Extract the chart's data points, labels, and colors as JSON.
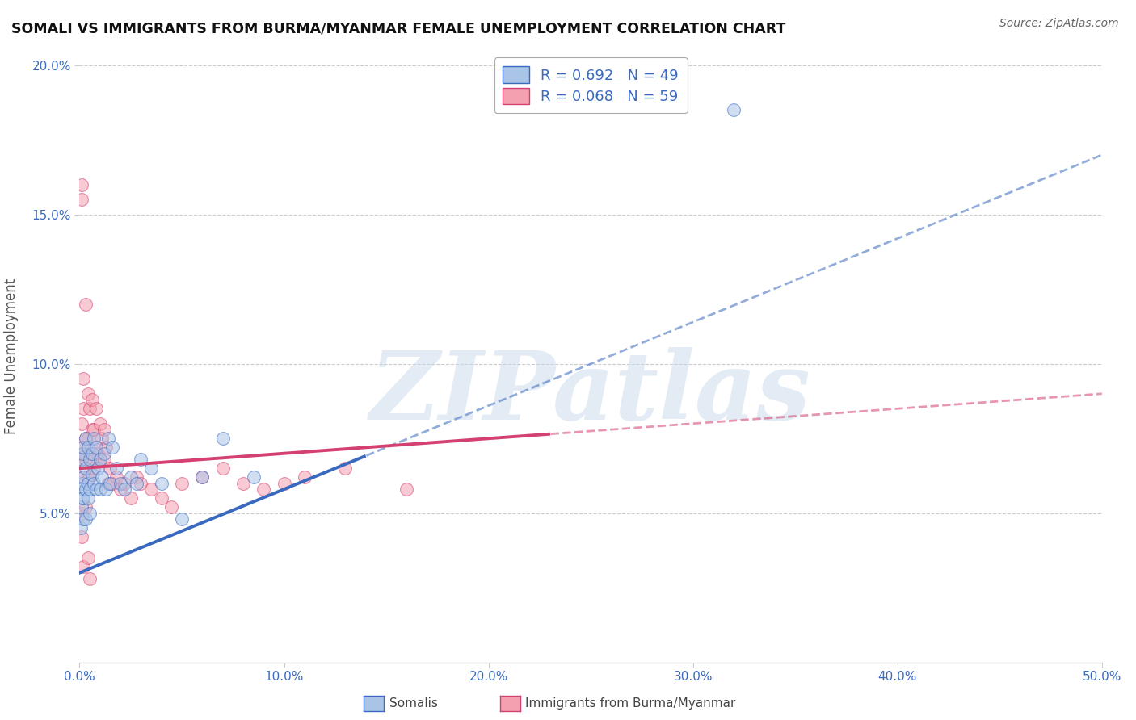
{
  "title": "SOMALI VS IMMIGRANTS FROM BURMA/MYANMAR FEMALE UNEMPLOYMENT CORRELATION CHART",
  "source": "Source: ZipAtlas.com",
  "ylabel": "Female Unemployment",
  "legend_label1": "Somalis",
  "legend_label2": "Immigrants from Burma/Myanmar",
  "R1": 0.692,
  "N1": 49,
  "R2": 0.068,
  "N2": 59,
  "color1": "#aac4e8",
  "color2": "#f4a0b0",
  "trendline1_color": "#3a6abf",
  "trendline2_color": "#d44070",
  "xlim": [
    0.0,
    0.5
  ],
  "ylim": [
    0.0,
    0.205
  ],
  "xtick_vals": [
    0.0,
    0.1,
    0.2,
    0.3,
    0.4,
    0.5
  ],
  "ytick_vals": [
    0.05,
    0.1,
    0.15,
    0.2
  ],
  "watermark": "ZIPatlas",
  "trendline1_x0": 0.0,
  "trendline1_y0": 0.03,
  "trendline1_x1": 0.5,
  "trendline1_y1": 0.17,
  "trendline1_solid_end": 0.14,
  "trendline2_x0": 0.0,
  "trendline2_y0": 0.065,
  "trendline2_x1": 0.5,
  "trendline2_y1": 0.09,
  "trendline2_solid_end": 0.23,
  "somali_x": [
    0.0005,
    0.001,
    0.001,
    0.001,
    0.001,
    0.0015,
    0.0015,
    0.002,
    0.002,
    0.002,
    0.002,
    0.003,
    0.003,
    0.003,
    0.003,
    0.004,
    0.004,
    0.004,
    0.005,
    0.005,
    0.005,
    0.006,
    0.006,
    0.007,
    0.007,
    0.008,
    0.008,
    0.009,
    0.01,
    0.01,
    0.011,
    0.012,
    0.013,
    0.014,
    0.015,
    0.016,
    0.018,
    0.02,
    0.022,
    0.025,
    0.028,
    0.03,
    0.035,
    0.04,
    0.05,
    0.06,
    0.07,
    0.085,
    0.32
  ],
  "somali_y": [
    0.045,
    0.06,
    0.052,
    0.068,
    0.058,
    0.055,
    0.07,
    0.048,
    0.062,
    0.072,
    0.055,
    0.065,
    0.058,
    0.048,
    0.075,
    0.06,
    0.072,
    0.055,
    0.068,
    0.058,
    0.05,
    0.063,
    0.07,
    0.06,
    0.075,
    0.058,
    0.072,
    0.065,
    0.068,
    0.058,
    0.062,
    0.07,
    0.058,
    0.075,
    0.06,
    0.072,
    0.065,
    0.06,
    0.058,
    0.062,
    0.06,
    0.068,
    0.065,
    0.06,
    0.048,
    0.062,
    0.075,
    0.062,
    0.185
  ],
  "burma_x": [
    0.0005,
    0.001,
    0.001,
    0.001,
    0.001,
    0.002,
    0.002,
    0.002,
    0.002,
    0.003,
    0.003,
    0.003,
    0.004,
    0.004,
    0.004,
    0.005,
    0.005,
    0.005,
    0.006,
    0.006,
    0.006,
    0.007,
    0.007,
    0.008,
    0.008,
    0.009,
    0.01,
    0.01,
    0.011,
    0.012,
    0.012,
    0.013,
    0.014,
    0.015,
    0.016,
    0.018,
    0.02,
    0.022,
    0.025,
    0.028,
    0.03,
    0.035,
    0.04,
    0.045,
    0.05,
    0.06,
    0.07,
    0.08,
    0.09,
    0.1,
    0.11,
    0.13,
    0.16,
    0.001,
    0.001,
    0.002,
    0.003,
    0.004,
    0.005
  ],
  "burma_y": [
    0.068,
    0.072,
    0.16,
    0.155,
    0.08,
    0.095,
    0.07,
    0.085,
    0.062,
    0.12,
    0.075,
    0.068,
    0.09,
    0.075,
    0.062,
    0.085,
    0.07,
    0.062,
    0.078,
    0.068,
    0.088,
    0.065,
    0.078,
    0.072,
    0.085,
    0.07,
    0.068,
    0.08,
    0.075,
    0.068,
    0.078,
    0.072,
    0.06,
    0.065,
    0.06,
    0.062,
    0.058,
    0.06,
    0.055,
    0.062,
    0.06,
    0.058,
    0.055,
    0.052,
    0.06,
    0.062,
    0.065,
    0.06,
    0.058,
    0.06,
    0.062,
    0.065,
    0.058,
    0.05,
    0.042,
    0.032,
    0.052,
    0.035,
    0.028
  ]
}
